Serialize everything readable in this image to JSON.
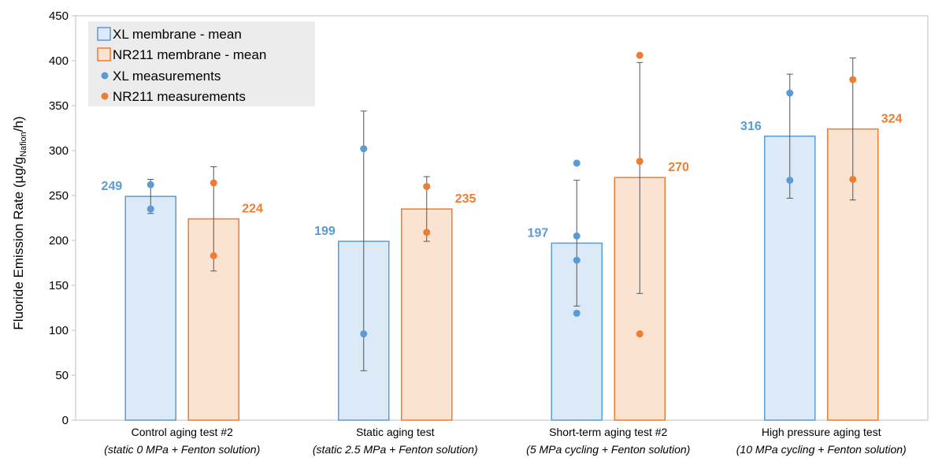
{
  "colors": {
    "xl_bar_fill": "#dce9f7",
    "xl_bar_stroke": "#5b9bd5",
    "xl_point": "#5b9bd5",
    "xl_label": "#5b9bd5",
    "nr_bar_fill": "#fbe3d2",
    "nr_bar_stroke": "#ed7d31",
    "nr_point": "#ed7d31",
    "nr_label": "#ed7d31",
    "error_bar": "#555555",
    "legend_bg": "#ececec"
  },
  "chart_data": {
    "type": "bar",
    "ylabel": "Fluoride Emission Rate (µg/g",
    "ylabel_subscript": "Nafion",
    "ylabel_suffix": "/h)",
    "ylim": [
      0,
      450
    ],
    "yticks": [
      0,
      50,
      100,
      150,
      200,
      250,
      300,
      350,
      400,
      450
    ],
    "grid": false,
    "legend_position": "top-left",
    "categories": [
      {
        "line1": "Control aging test #2",
        "line2": "(static 0 MPa + Fenton solution)"
      },
      {
        "line1": "Static aging test",
        "line2": "(static 2.5 MPa + Fenton solution)"
      },
      {
        "line1": "Short-term aging test #2",
        "line2": "(5 MPa cycling + Fenton solution)"
      },
      {
        "line1": "High pressure aging test",
        "line2": "(10 MPa cycling + Fenton solution)"
      }
    ],
    "series": [
      {
        "name": "XL membrane - mean",
        "values": [
          249,
          199,
          197,
          316
        ],
        "labels": [
          "249",
          "199",
          "197",
          "316"
        ],
        "error_low": [
          230,
          55,
          127,
          247
        ],
        "error_high": [
          268,
          344,
          267,
          385
        ],
        "measurements_name": "XL measurements",
        "measurements": [
          [
            262,
            235
          ],
          [
            302,
            96
          ],
          [
            286,
            205,
            178,
            119
          ],
          [
            364,
            267
          ]
        ]
      },
      {
        "name": "NR211 membrane - mean",
        "values": [
          224,
          235,
          270,
          324
        ],
        "labels": [
          "224",
          "235",
          "270",
          "324"
        ],
        "error_low": [
          166,
          199,
          141,
          245
        ],
        "error_high": [
          282,
          271,
          398,
          403
        ],
        "measurements_name": "NR211 measurements",
        "measurements": [
          [
            264,
            183
          ],
          [
            260,
            209
          ],
          [
            406,
            288,
            96
          ],
          [
            379,
            268
          ]
        ]
      }
    ]
  }
}
